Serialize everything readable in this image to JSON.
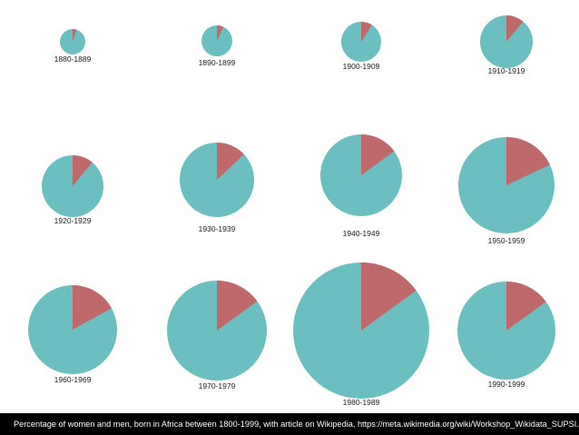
{
  "chart_data": {
    "type": "pie",
    "series_colors": {
      "women": "#c0696a",
      "men": "#6bbfc1"
    },
    "pies": [
      {
        "label": "1880-1889",
        "women_pct": 5,
        "men_pct": 95
      },
      {
        "label": "1890-1899",
        "women_pct": 7,
        "men_pct": 93
      },
      {
        "label": "1900-1909",
        "women_pct": 9,
        "men_pct": 91
      },
      {
        "label": "1910-1919",
        "women_pct": 11,
        "men_pct": 89
      },
      {
        "label": "1920-1929",
        "women_pct": 11,
        "men_pct": 89
      },
      {
        "label": "1930-1939",
        "women_pct": 13,
        "men_pct": 87
      },
      {
        "label": "1940-1949",
        "women_pct": 15,
        "men_pct": 85
      },
      {
        "label": "1950-1959",
        "women_pct": 18,
        "men_pct": 82
      },
      {
        "label": "1960-1969",
        "women_pct": 17,
        "men_pct": 83
      },
      {
        "label": "1970-1979",
        "women_pct": 15,
        "men_pct": 85
      },
      {
        "label": "1980-1989",
        "women_pct": 15,
        "men_pct": 85
      },
      {
        "label": "1990-1999",
        "women_pct": 15,
        "men_pct": 85
      }
    ]
  },
  "caption": "Percentage of women and men, born in Africa between 1800-1999, with article on Wikipedia, https://meta.wikimedia.org/wiki/Workshop_Wikidata_SUPSI."
}
